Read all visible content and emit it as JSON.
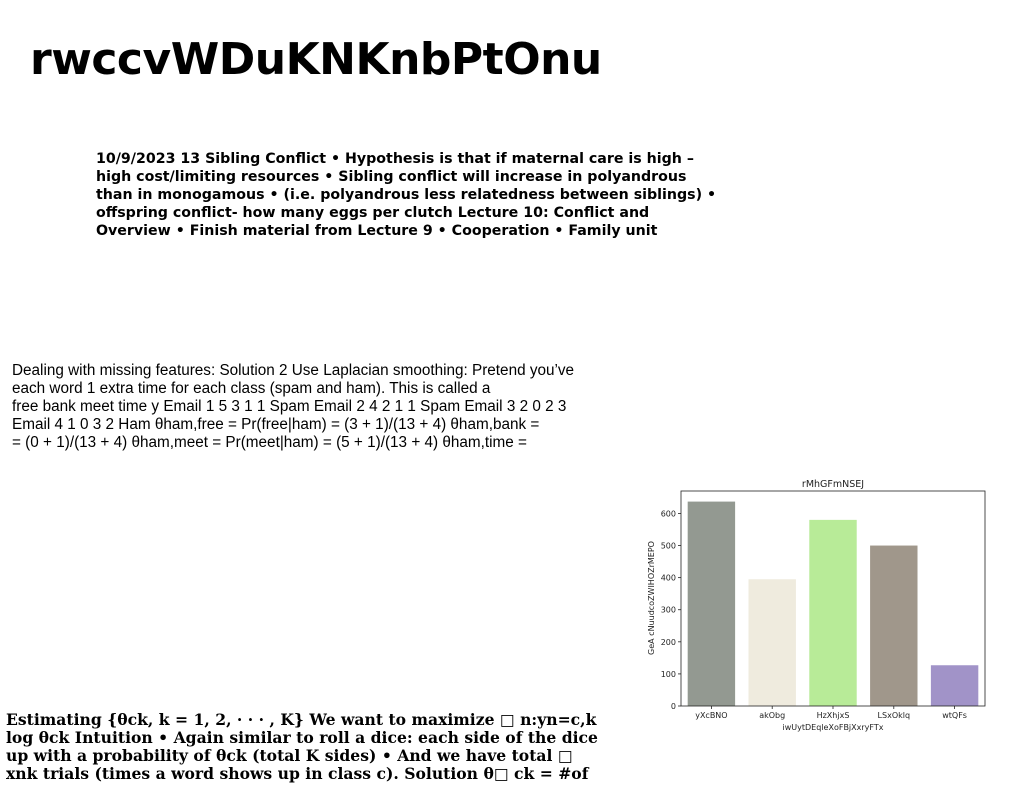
{
  "page_title": "rwccvWDuKNKnbPtOnu",
  "paragraphs": [
    {
      "lines": [
        "10/9/2023 13 Sibling Conflict • Hypothesis is that if maternal care is high –",
        "high cost/limiting resources • Sibling conflict will increase in polyandrous",
        "than in monogamous • (i.e. polyandrous less relatedness between siblings) •",
        "offspring conflict- how many eggs per clutch Lecture 10: Conflict and",
        "Overview • Finish material from Lecture 9 • Cooperation • Family unit"
      ]
    },
    {
      "lines": [
        "Dealing with missing features: Solution 2 Use Laplacian smoothing: Pretend you’ve",
        "each word 1 extra time for each class (spam and ham). This is called a",
        "free bank meet time y Email 1 5 3 1 1 Spam Email 2 4 2 1 1 Spam Email 3 2 0 2 3",
        "Email 4 1 0 3 2 Ham θham,free = Pr(free|ham) = (3 + 1)/(13 + 4) θham,bank =",
        "= (0 + 1)/(13 + 4) θham,meet = Pr(meet|ham) = (5 + 1)/(13 + 4) θham,time ="
      ]
    },
    {
      "lines": [
        "Estimating {θck, k = 1, 2, · · · , K} We want to maximize □ n:yn=c,k",
        "log θck Intuition • Again similar to roll a dice: each side of the dice",
        "up with a probability of θck (total K sides) • And we have total □",
        "xnk trials (times a word shows up in class c). Solution θ□ ck = #of"
      ]
    }
  ],
  "chart_data": {
    "type": "bar",
    "title": "rMhGFmNSEJ",
    "xlabel": "iwUytDEqleXoFBjXxryFTx",
    "ylabel": "GeA cNuudcoZWIHOZrMEPO",
    "categories": [
      "yXcBNO",
      "akObg",
      "HzXhjxS",
      "LSxOklq",
      "wtQFs"
    ],
    "values": [
      637,
      395,
      580,
      500,
      127
    ],
    "colors": [
      "#939991",
      "#efebde",
      "#b8eb98",
      "#a0978b",
      "#a193c8"
    ],
    "ylim": [
      0,
      670
    ],
    "yticks": [
      0,
      100,
      200,
      300,
      400,
      500,
      600
    ],
    "grid": false
  }
}
